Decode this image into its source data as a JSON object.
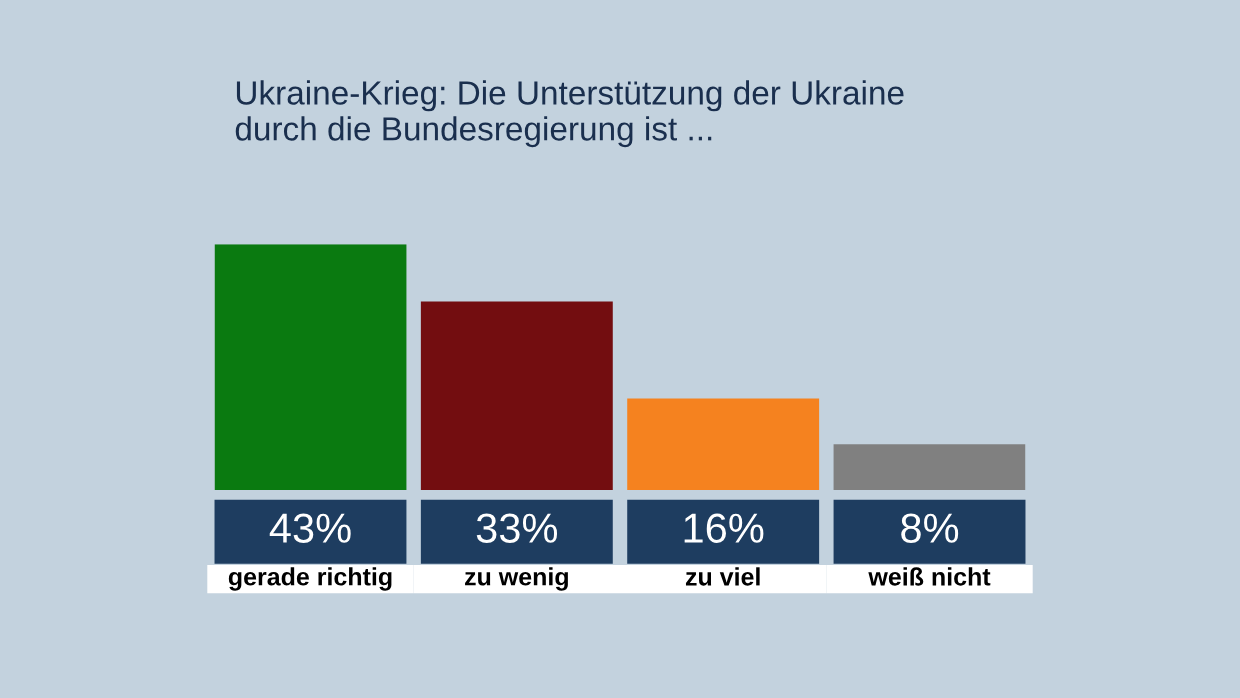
{
  "chart_data": {
    "type": "bar",
    "title": "Ukraine-Krieg: Die Unterstützung der Ukraine\ndurch die Bundesregierung ist ...",
    "categories": [
      "gerade richtig",
      "zu wenig",
      "zu viel",
      "weiß nicht"
    ],
    "values": [
      43,
      33,
      16,
      8
    ],
    "colors": [
      "#0a7a10",
      "#730d10",
      "#f5821f",
      "#808080"
    ],
    "value_labels": [
      "43%",
      "33%",
      "16%",
      "8%"
    ]
  }
}
